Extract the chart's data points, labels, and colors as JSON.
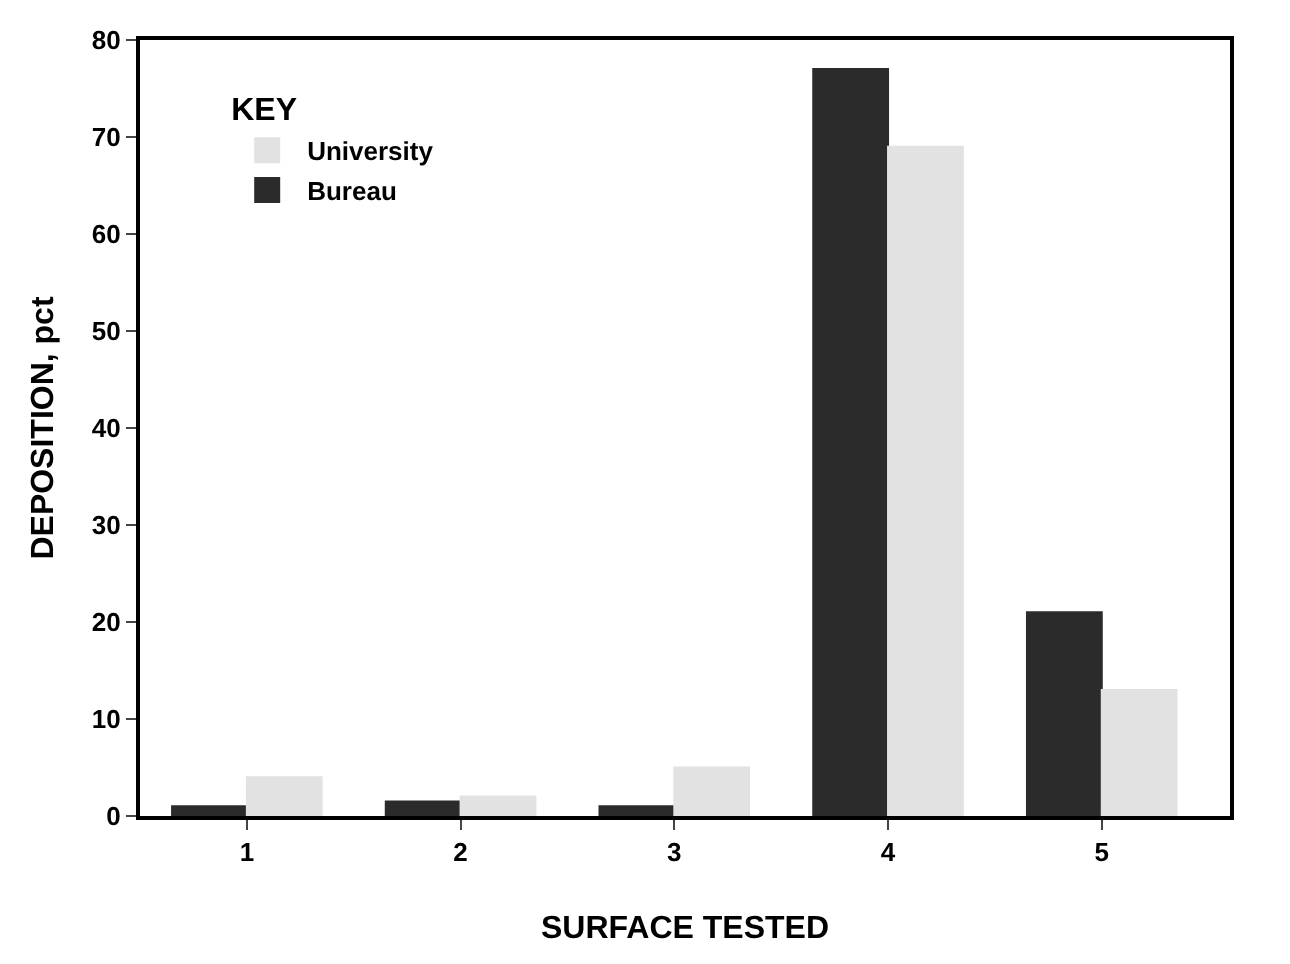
{
  "chart_data": {
    "type": "bar",
    "xlabel": "SURFACE TESTED",
    "ylabel": "DEPOSITION, pct",
    "categories": [
      "1",
      "2",
      "3",
      "4",
      "5"
    ],
    "series": [
      {
        "name": "Bureau",
        "color": "#2b2b2b",
        "values": [
          1,
          1.5,
          1,
          77,
          21
        ]
      },
      {
        "name": "University",
        "color": "#e2e2e2",
        "values": [
          4,
          2,
          5,
          69,
          13
        ]
      }
    ],
    "ylim": [
      0,
      80
    ],
    "yticks": [
      0,
      10,
      20,
      30,
      40,
      50,
      60,
      70,
      80
    ],
    "legend": "top left",
    "legend_title": "KEY"
  }
}
